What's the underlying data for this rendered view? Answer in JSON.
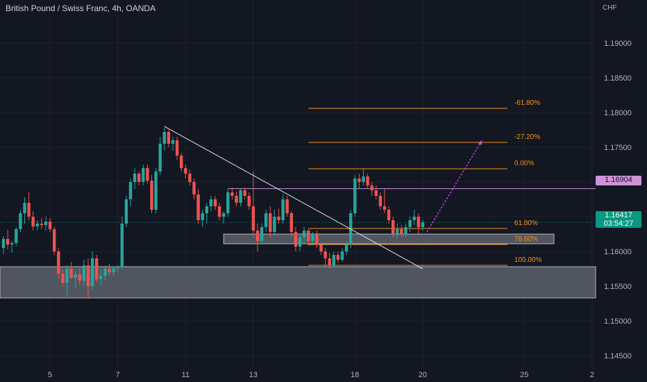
{
  "header": {
    "title": "British Pound / Swiss Franc, 4h, OANDA",
    "currency": "CHF"
  },
  "price_tags": {
    "level_line": "1.16904",
    "last_price": "1.16417",
    "countdown": "03:54:27"
  },
  "colors": {
    "up": "#26a69a",
    "down": "#ef5350",
    "fib": "#f7931a",
    "level": "#ce93d8",
    "zone": "#5d606b",
    "trend": "#e0e3eb"
  },
  "chart_data": {
    "type": "candlestick",
    "title": "British Pound / Swiss Franc, 4h, OANDA",
    "ylim": [
      1.1432,
      1.1962
    ],
    "y_ticks": [
      1.19,
      1.185,
      1.18,
      1.175,
      1.17,
      1.165,
      1.16,
      1.155,
      1.15,
      1.145
    ],
    "y_tick_labels": [
      "1.19000",
      "1.18500",
      "1.18000",
      "1.17500",
      "1.17000",
      "1.16500",
      "1.16000",
      "1.15500",
      "1.15000",
      "1.14500"
    ],
    "x_ticks": [
      {
        "label": "5",
        "bar": 11
      },
      {
        "label": "7",
        "bar": 27
      },
      {
        "label": "11",
        "bar": 43
      },
      {
        "label": "13",
        "bar": 59
      },
      {
        "label": "18",
        "bar": 83
      },
      {
        "label": "20",
        "bar": 99
      },
      {
        "label": "25",
        "bar": 123
      },
      {
        "label": "2",
        "bar": 139
      }
    ],
    "candles": [
      [
        1.1605,
        1.1622,
        1.1596,
        1.1618
      ],
      [
        1.1618,
        1.1631,
        1.1603,
        1.161
      ],
      [
        1.161,
        1.1615,
        1.1598,
        1.1612
      ],
      [
        1.1612,
        1.1635,
        1.1608,
        1.1632
      ],
      [
        1.1632,
        1.166,
        1.1628,
        1.1655
      ],
      [
        1.1655,
        1.1678,
        1.164,
        1.167
      ],
      [
        1.167,
        1.1685,
        1.1645,
        1.165
      ],
      [
        1.165,
        1.1658,
        1.163,
        1.1636
      ],
      [
        1.1636,
        1.1645,
        1.163,
        1.164
      ],
      [
        1.164,
        1.1648,
        1.1632,
        1.1638
      ],
      [
        1.1638,
        1.165,
        1.163,
        1.1643
      ],
      [
        1.1643,
        1.1648,
        1.1628,
        1.1632
      ],
      [
        1.1632,
        1.1636,
        1.1595,
        1.16
      ],
      [
        1.16,
        1.1605,
        1.156,
        1.1568
      ],
      [
        1.1568,
        1.1575,
        1.155,
        1.1555
      ],
      [
        1.1555,
        1.158,
        1.1535,
        1.1575
      ],
      [
        1.1575,
        1.1585,
        1.156,
        1.1562
      ],
      [
        1.1562,
        1.1572,
        1.1548,
        1.1567
      ],
      [
        1.1567,
        1.1575,
        1.1552,
        1.1558
      ],
      [
        1.1558,
        1.1588,
        1.155,
        1.158
      ],
      [
        1.158,
        1.159,
        1.1532,
        1.155
      ],
      [
        1.155,
        1.16,
        1.1545,
        1.159
      ],
      [
        1.159,
        1.1595,
        1.1555,
        1.156
      ],
      [
        1.156,
        1.1575,
        1.155,
        1.1565
      ],
      [
        1.1565,
        1.158,
        1.1558,
        1.1575
      ],
      [
        1.1575,
        1.1582,
        1.1565,
        1.157
      ],
      [
        1.157,
        1.1578,
        1.1565,
        1.1576
      ],
      [
        1.1576,
        1.158,
        1.157,
        1.1578
      ],
      [
        1.1578,
        1.165,
        1.1575,
        1.164
      ],
      [
        1.164,
        1.168,
        1.1635,
        1.1675
      ],
      [
        1.1675,
        1.1705,
        1.1665,
        1.17
      ],
      [
        1.17,
        1.172,
        1.169,
        1.1712
      ],
      [
        1.1712,
        1.1715,
        1.1695,
        1.17
      ],
      [
        1.17,
        1.1725,
        1.1695,
        1.172
      ],
      [
        1.172,
        1.1725,
        1.1698,
        1.1702
      ],
      [
        1.1702,
        1.171,
        1.1655,
        1.166
      ],
      [
        1.166,
        1.172,
        1.1655,
        1.1715
      ],
      [
        1.1715,
        1.1765,
        1.171,
        1.1755
      ],
      [
        1.1755,
        1.1778,
        1.1745,
        1.1772
      ],
      [
        1.1772,
        1.1775,
        1.175,
        1.1755
      ],
      [
        1.1755,
        1.1765,
        1.1745,
        1.176
      ],
      [
        1.176,
        1.1765,
        1.1732,
        1.1738
      ],
      [
        1.1738,
        1.1742,
        1.1715,
        1.172
      ],
      [
        1.172,
        1.1725,
        1.1705,
        1.1712
      ],
      [
        1.1712,
        1.1718,
        1.1695,
        1.17
      ],
      [
        1.17,
        1.1705,
        1.1675,
        1.1682
      ],
      [
        1.1682,
        1.169,
        1.164,
        1.1645
      ],
      [
        1.1645,
        1.166,
        1.1635,
        1.1655
      ],
      [
        1.1655,
        1.167,
        1.164,
        1.1665
      ],
      [
        1.1665,
        1.168,
        1.1658,
        1.1675
      ],
      [
        1.1675,
        1.168,
        1.166,
        1.1665
      ],
      [
        1.1665,
        1.167,
        1.1645,
        1.165
      ],
      [
        1.165,
        1.1658,
        1.164,
        1.1655
      ],
      [
        1.1655,
        1.169,
        1.165,
        1.1685
      ],
      [
        1.1685,
        1.1692,
        1.1675,
        1.168
      ],
      [
        1.168,
        1.1686,
        1.1665,
        1.167
      ],
      [
        1.167,
        1.169,
        1.1665,
        1.1688
      ],
      [
        1.1688,
        1.1692,
        1.1675,
        1.168
      ],
      [
        1.168,
        1.1685,
        1.166,
        1.1665
      ],
      [
        1.1665,
        1.1715,
        1.162,
        1.163
      ],
      [
        1.163,
        1.164,
        1.16,
        1.1615
      ],
      [
        1.1615,
        1.164,
        1.161,
        1.1635
      ],
      [
        1.1635,
        1.166,
        1.1628,
        1.1655
      ],
      [
        1.1655,
        1.1665,
        1.162,
        1.1628
      ],
      [
        1.1628,
        1.166,
        1.1622,
        1.165
      ],
      [
        1.165,
        1.1662,
        1.164,
        1.1645
      ],
      [
        1.1645,
        1.1682,
        1.164,
        1.1675
      ],
      [
        1.1675,
        1.168,
        1.165,
        1.1655
      ],
      [
        1.1655,
        1.1658,
        1.162,
        1.1628
      ],
      [
        1.1628,
        1.1635,
        1.16,
        1.1607
      ],
      [
        1.1607,
        1.1625,
        1.16,
        1.162
      ],
      [
        1.162,
        1.1635,
        1.1612,
        1.163
      ],
      [
        1.163,
        1.1632,
        1.1608,
        1.1615
      ],
      [
        1.1615,
        1.1628,
        1.161,
        1.1625
      ],
      [
        1.1625,
        1.163,
        1.1605,
        1.161
      ],
      [
        1.161,
        1.1612,
        1.1595,
        1.16
      ],
      [
        1.16,
        1.1605,
        1.1578,
        1.159
      ],
      [
        1.159,
        1.1598,
        1.1575,
        1.158
      ],
      [
        1.158,
        1.16,
        1.1578,
        1.1595
      ],
      [
        1.1595,
        1.16,
        1.1583,
        1.1588
      ],
      [
        1.1588,
        1.1605,
        1.1585,
        1.16
      ],
      [
        1.16,
        1.1615,
        1.1595,
        1.161
      ],
      [
        1.161,
        1.166,
        1.1605,
        1.1655
      ],
      [
        1.1655,
        1.171,
        1.165,
        1.1705
      ],
      [
        1.1705,
        1.1712,
        1.169,
        1.17
      ],
      [
        1.17,
        1.172,
        1.1695,
        1.1708
      ],
      [
        1.1708,
        1.1712,
        1.169,
        1.1695
      ],
      [
        1.1695,
        1.17,
        1.168,
        1.1688
      ],
      [
        1.1688,
        1.1695,
        1.1675,
        1.168
      ],
      [
        1.168,
        1.1685,
        1.166,
        1.1665
      ],
      [
        1.1665,
        1.169,
        1.1655,
        1.166
      ],
      [
        1.166,
        1.1665,
        1.164,
        1.1645
      ],
      [
        1.1645,
        1.165,
        1.162,
        1.1625
      ],
      [
        1.1625,
        1.164,
        1.1618,
        1.1632
      ],
      [
        1.1632,
        1.1638,
        1.162,
        1.1625
      ],
      [
        1.1625,
        1.164,
        1.162,
        1.1635
      ],
      [
        1.1635,
        1.165,
        1.1628,
        1.1645
      ],
      [
        1.1645,
        1.166,
        1.1638,
        1.165
      ],
      [
        1.165,
        1.1655,
        1.1625,
        1.1635
      ],
      [
        1.1635,
        1.1645,
        1.163,
        1.1642
      ]
    ],
    "horizontal_levels": [
      {
        "price": 1.16904,
        "label": "1.16904"
      }
    ],
    "zones": [
      {
        "top": 1.1578,
        "bottom": 1.1533
      },
      {
        "top": 1.1625,
        "bottom": 1.1611
      }
    ],
    "fibonacci": [
      {
        "label": "-61.80%",
        "price": 1.1806
      },
      {
        "label": "-27.20%",
        "price": 1.1757
      },
      {
        "label": "0.00%",
        "price": 1.1719
      },
      {
        "label": "61.80%",
        "price": 1.1633
      },
      {
        "label": "78.60%",
        "price": 1.161
      },
      {
        "label": "100.00%",
        "price": 1.158
      }
    ],
    "trendline": {
      "from": {
        "bar": 38,
        "price": 1.178
      },
      "to": {
        "bar": 99,
        "price": 1.1575
      }
    },
    "projection": {
      "from": {
        "bar": 99,
        "price": 1.1628
      },
      "to": {
        "bar": 113,
        "price": 1.176
      }
    },
    "last_price": 1.16417
  }
}
